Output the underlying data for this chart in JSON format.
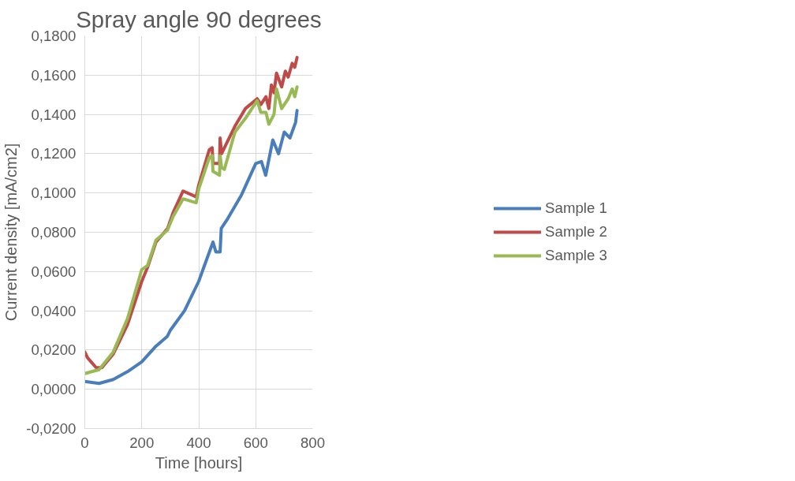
{
  "chart_data": {
    "type": "line",
    "title": "Spray angle 90 degrees",
    "xlabel": "Time [hours]",
    "ylabel": "Current density [mA/cm2]",
    "xlim": [
      0,
      800
    ],
    "xticks": [
      0,
      200,
      400,
      600,
      800
    ],
    "ylim": [
      -0.02,
      0.18
    ],
    "yticks": [
      {
        "value": -0.02,
        "label": "-0,0200"
      },
      {
        "value": 0,
        "label": "0,0000"
      },
      {
        "value": 0.02,
        "label": "0,0200"
      },
      {
        "value": 0.04,
        "label": "0,0400"
      },
      {
        "value": 0.06,
        "label": "0,0600"
      },
      {
        "value": 0.08,
        "label": "0,0800"
      },
      {
        "value": 0.1,
        "label": "0,1000"
      },
      {
        "value": 0.12,
        "label": "0,1200"
      },
      {
        "value": 0.14,
        "label": "0,1400"
      },
      {
        "value": 0.16,
        "label": "0,1600"
      },
      {
        "value": 0.18,
        "label": "0,1800"
      }
    ],
    "grid": true,
    "legend": "right",
    "marker": "none",
    "line_style": "solid",
    "series": [
      {
        "name": "Sample 1",
        "color": "#4a7ebb",
        "x": [
          0,
          50,
          100,
          150,
          200,
          250,
          290,
          300,
          350,
          400,
          450,
          460,
          475,
          479,
          502,
          550,
          600,
          620,
          635,
          660,
          680,
          700,
          720,
          740,
          745
        ],
        "values": [
          0.004,
          0.003,
          0.005,
          0.009,
          0.014,
          0.022,
          0.027,
          0.03,
          0.04,
          0.055,
          0.075,
          0.07,
          0.07,
          0.082,
          0.087,
          0.099,
          0.115,
          0.116,
          0.109,
          0.127,
          0.12,
          0.131,
          0.128,
          0.136,
          0.142
        ]
      },
      {
        "name": "Sample 2",
        "color": "#be4b48",
        "x": [
          0,
          10,
          40,
          60,
          100,
          150,
          200,
          220,
          250,
          291,
          310,
          345,
          391,
          400,
          437,
          447,
          450,
          473,
          475,
          480,
          527,
          564,
          605,
          618,
          636,
          646,
          655,
          664,
          673,
          691,
          704,
          714,
          728,
          737,
          745
        ],
        "values": [
          0.019,
          0.016,
          0.011,
          0.011,
          0.018,
          0.033,
          0.055,
          0.062,
          0.075,
          0.082,
          0.09,
          0.101,
          0.098,
          0.104,
          0.122,
          0.123,
          0.115,
          0.115,
          0.128,
          0.12,
          0.134,
          0.143,
          0.148,
          0.145,
          0.149,
          0.143,
          0.155,
          0.151,
          0.161,
          0.154,
          0.162,
          0.159,
          0.166,
          0.164,
          0.169
        ]
      },
      {
        "name": "Sample 3",
        "color": "#98b954",
        "x": [
          0,
          50,
          100,
          150,
          200,
          220,
          250,
          290,
          310,
          345,
          391,
          400,
          437,
          447,
          450,
          473,
          475,
          480,
          490,
          527,
          564,
          605,
          618,
          636,
          646,
          664,
          673,
          691,
          714,
          728,
          737,
          745
        ],
        "values": [
          0.008,
          0.01,
          0.019,
          0.036,
          0.061,
          0.063,
          0.076,
          0.081,
          0.088,
          0.097,
          0.095,
          0.102,
          0.118,
          0.119,
          0.111,
          0.109,
          0.119,
          0.113,
          0.112,
          0.131,
          0.138,
          0.147,
          0.141,
          0.141,
          0.135,
          0.14,
          0.153,
          0.143,
          0.148,
          0.153,
          0.149,
          0.154
        ]
      }
    ]
  }
}
